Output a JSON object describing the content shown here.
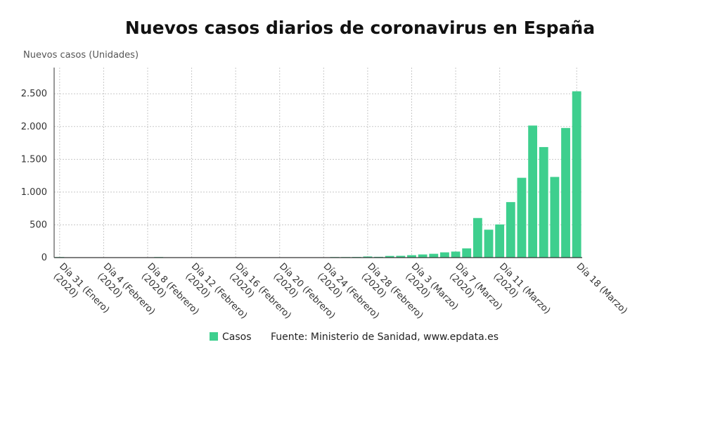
{
  "chart_data": {
    "type": "bar",
    "title": "Nuevos casos diarios de coronavirus en España",
    "ylabel": "Nuevos casos (Unidades)",
    "xlabel": "",
    "ylim": [
      0,
      2900
    ],
    "yticks": [
      0,
      500,
      1000,
      1500,
      2000,
      2500
    ],
    "ytick_labels": [
      "0",
      "500",
      "1.000",
      "1.500",
      "2.000",
      "2.500"
    ],
    "grid": true,
    "x_tick_labels": [
      {
        "index": 0,
        "lines": [
          "Día 31 (Enero)",
          "(2020)"
        ]
      },
      {
        "index": 4,
        "lines": [
          "Día 4 (Febrero)",
          "(2020)"
        ]
      },
      {
        "index": 8,
        "lines": [
          "Día 8 (Febrero)",
          "(2020)"
        ]
      },
      {
        "index": 12,
        "lines": [
          "Día 12 (Febrero)",
          "(2020)"
        ]
      },
      {
        "index": 16,
        "lines": [
          "Día 16 (Febrero)",
          "(2020)"
        ]
      },
      {
        "index": 20,
        "lines": [
          "Día 20 (Febrero)",
          "(2020)"
        ]
      },
      {
        "index": 24,
        "lines": [
          "Día 24 (Febrero)",
          "(2020)"
        ]
      },
      {
        "index": 28,
        "lines": [
          "Día 28 (Febrero)",
          "(2020)"
        ]
      },
      {
        "index": 32,
        "lines": [
          "Día 3 (Marzo)",
          "(2020)"
        ]
      },
      {
        "index": 36,
        "lines": [
          "Día 7 (Marzo)",
          "(2020)"
        ]
      },
      {
        "index": 40,
        "lines": [
          "Día 11 (Marzo)",
          "(2020)"
        ]
      },
      {
        "index": 47,
        "lines": [
          "Día 18 (Marzo)"
        ]
      }
    ],
    "series": [
      {
        "name": "Casos",
        "color": "#3ecf8e",
        "values": [
          1,
          0,
          0,
          0,
          0,
          0,
          0,
          0,
          0,
          1,
          0,
          0,
          0,
          0,
          0,
          0,
          0,
          0,
          0,
          0,
          0,
          0,
          0,
          0,
          0,
          3,
          5,
          10,
          17,
          12,
          25,
          27,
          37,
          48,
          58,
          80,
          92,
          141,
          604,
          426,
          506,
          847,
          1218,
          2015,
          1687,
          1231,
          1978,
          2538
        ]
      }
    ]
  },
  "legend": {
    "series_label": "Casos",
    "source": "Fuente: Ministerio de Sanidad, www.epdata.es"
  },
  "colors": {
    "bar": "#3ecf8e",
    "grid": "#c8c8c8",
    "axis": "#333333"
  }
}
